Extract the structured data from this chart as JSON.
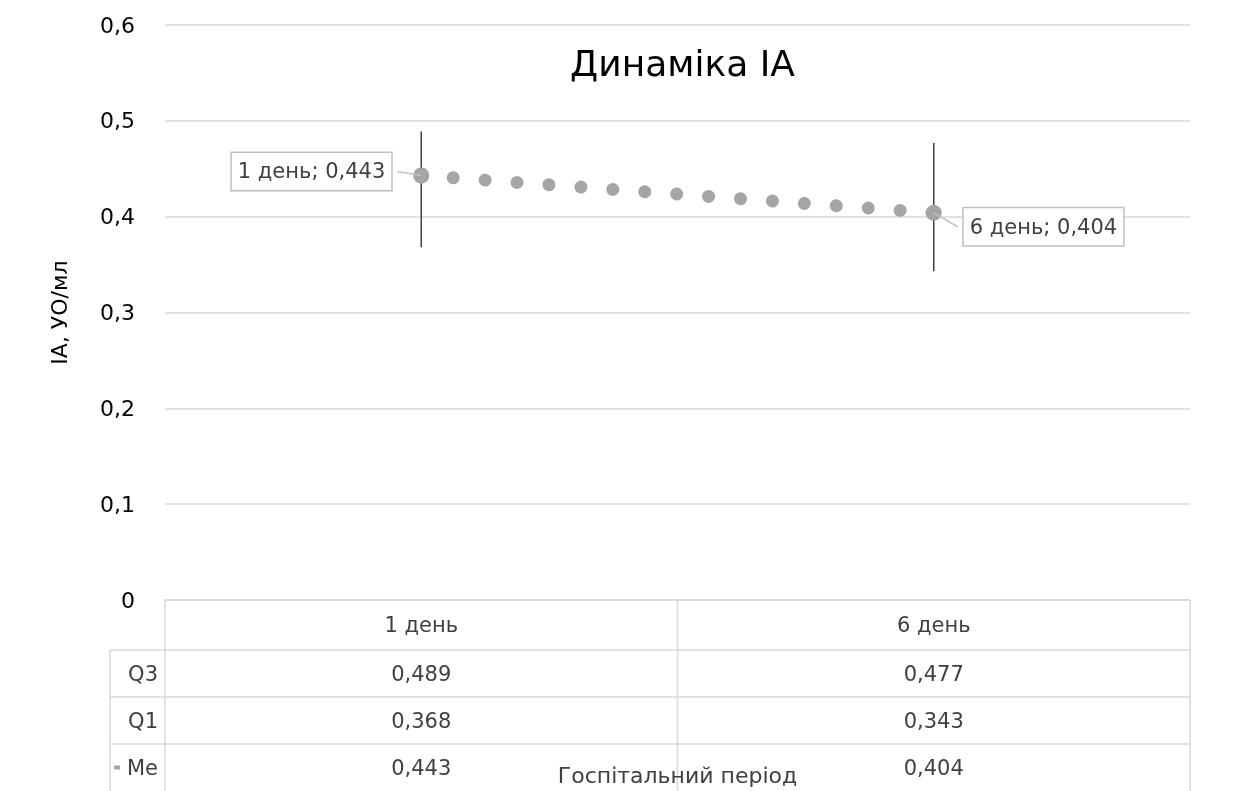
{
  "chart_data": {
    "type": "line",
    "title": "Динаміка IA",
    "ylabel": "IA, УО/мл",
    "categories": [
      "1 день",
      "6 день"
    ],
    "series": [
      {
        "name": "Me",
        "color": "#a5a5a5",
        "values": [
          0.443,
          0.404
        ],
        "errors": [
          [
            0.368,
            0.489
          ],
          [
            0.343,
            0.477
          ]
        ],
        "value_labels": [
          "0,443",
          "0,404"
        ]
      }
    ],
    "annotations": [
      "Q3",
      "0,489",
      "0,477",
      "Q1",
      "0,368",
      "0,343",
      "Госпітальний період",
      {
        "text": "1 день; 0,443",
        "x": "1 день",
        "y": 0.443
      },
      {
        "text": "6 день; 0,404",
        "x": "6 день",
        "y": 0.404
      }
    ],
    "ylim": [
      0,
      0.6
    ],
    "yticks": [
      0,
      {
        "value": 0.1,
        "label": "0,1"
      },
      {
        "value": 0.2,
        "label": "0,2"
      },
      {
        "value": 0.3,
        "label": "0,3"
      },
      {
        "value": 0.4,
        "label": "0,4"
      },
      {
        "value": 0.5,
        "label": "0,5"
      },
      {
        "value": 0.6,
        "label": "0,6"
      }
    ],
    "grid": "y",
    "legend": "bottom",
    "marker": "circle",
    "line_style": "dotted"
  }
}
